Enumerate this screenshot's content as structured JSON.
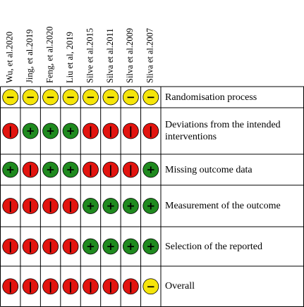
{
  "judgments": {
    "low": {
      "symbol": "+",
      "color": "#1f8a1f"
    },
    "some": {
      "symbol": "−",
      "color": "#f5e50a"
    },
    "high": {
      "symbol": "|",
      "color": "#e2140f"
    }
  },
  "studies": [
    "Wu, et al.2020",
    "Jing, et al.2019",
    "Feng, et al.2020",
    "Liu et al, 2019",
    "Silve et al.2015",
    "Silva et al.2011",
    "Silva et al.2009",
    "Sliva et al.2007"
  ],
  "rows": [
    {
      "label": "Randomisation process",
      "cells": [
        "some",
        "some",
        "some",
        "some",
        "some",
        "some",
        "some",
        "some"
      ]
    },
    {
      "label": "Deviations from the intended interventions",
      "cells": [
        "high",
        "low",
        "low",
        "low",
        "high",
        "high",
        "high",
        "high"
      ]
    },
    {
      "label": "Missing outcome data",
      "cells": [
        "low",
        "high",
        "low",
        "low",
        "high",
        "high",
        "high",
        "low"
      ]
    },
    {
      "label": "Measurement of the outcome",
      "cells": [
        "high",
        "high",
        "high",
        "high",
        "low",
        "low",
        "low",
        "low"
      ]
    },
    {
      "label": "Selection of the reported",
      "cells": [
        "high",
        "high",
        "high",
        "high",
        "low",
        "low",
        "low",
        "low"
      ]
    },
    {
      "label": "Overall",
      "cells": [
        "high",
        "high",
        "high",
        "high",
        "high",
        "high",
        "high",
        "some"
      ]
    }
  ]
}
